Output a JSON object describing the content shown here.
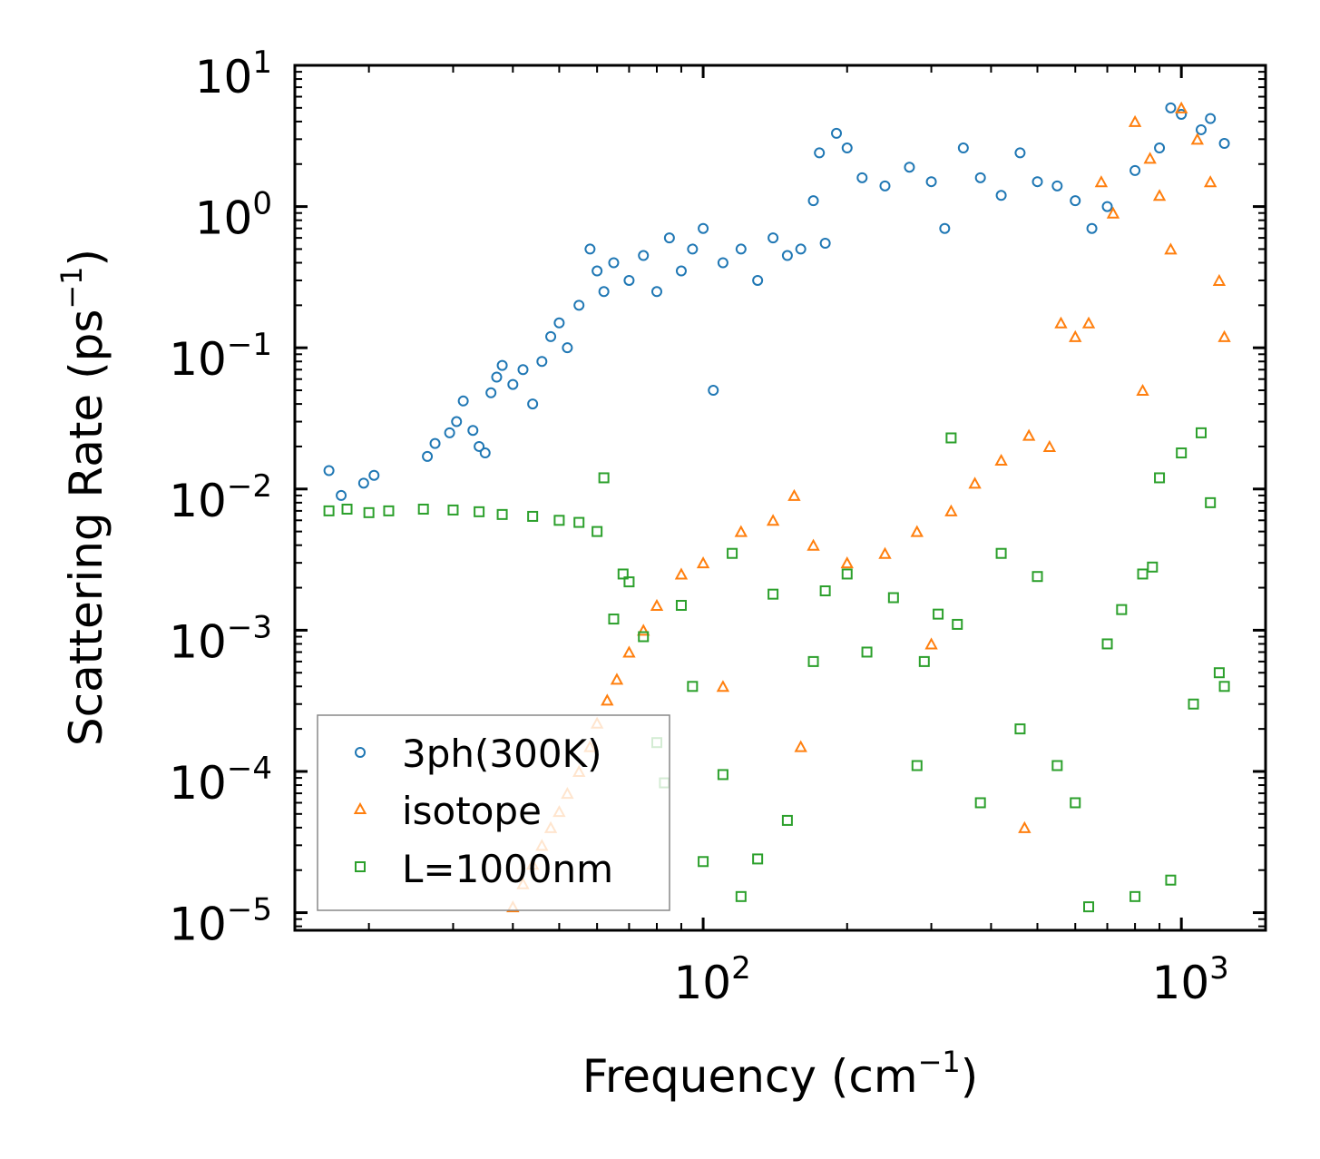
{
  "chart_data": {
    "type": "scatter",
    "title": "",
    "xlabel": "Frequency (cm⁻¹)",
    "ylabel": "Scattering Rate (ps⁻¹)",
    "xlabel_parts": {
      "base": "Frequency (cm",
      "sup": "−1",
      "end": ")"
    },
    "ylabel_parts": {
      "base": "Scattering Rate (ps",
      "sup": "−1",
      "end": ")"
    },
    "xscale": "log",
    "yscale": "log",
    "xlim": [
      14,
      1500
    ],
    "ylim": [
      7.5e-06,
      10
    ],
    "x_ticks": [
      {
        "value": 100,
        "base": "10",
        "exp": "2"
      },
      {
        "value": 1000,
        "base": "10",
        "exp": "3"
      }
    ],
    "y_ticks": [
      {
        "value": 10,
        "base": "10",
        "exp": "1"
      },
      {
        "value": 1,
        "base": "10",
        "exp": "0"
      },
      {
        "value": 0.1,
        "base": "10",
        "exp": "−1"
      },
      {
        "value": 0.01,
        "base": "10",
        "exp": "−2"
      },
      {
        "value": 0.001,
        "base": "10",
        "exp": "−3"
      },
      {
        "value": 0.0001,
        "base": "10",
        "exp": "−4"
      },
      {
        "value": 1e-05,
        "base": "10",
        "exp": "−5"
      }
    ],
    "grid": false,
    "legend_position": "lower-left",
    "series": [
      {
        "name": "3ph(300K)",
        "marker": "circle",
        "color": "#1f77b4",
        "points": [
          [
            16.5,
            0.0135
          ],
          [
            17.5,
            0.009
          ],
          [
            19.5,
            0.011
          ],
          [
            20.5,
            0.0125
          ],
          [
            26.5,
            0.017
          ],
          [
            27.5,
            0.021
          ],
          [
            29.5,
            0.025
          ],
          [
            30.5,
            0.03
          ],
          [
            31.5,
            0.042
          ],
          [
            33,
            0.026
          ],
          [
            34,
            0.02
          ],
          [
            35,
            0.018
          ],
          [
            36,
            0.048
          ],
          [
            37,
            0.062
          ],
          [
            38,
            0.075
          ],
          [
            40,
            0.055
          ],
          [
            42,
            0.07
          ],
          [
            44,
            0.04
          ],
          [
            46,
            0.08
          ],
          [
            48,
            0.12
          ],
          [
            50,
            0.15
          ],
          [
            52,
            0.1
          ],
          [
            55,
            0.2
          ],
          [
            58,
            0.5
          ],
          [
            60,
            0.35
          ],
          [
            62,
            0.25
          ],
          [
            65,
            0.4
          ],
          [
            70,
            0.3
          ],
          [
            75,
            0.45
          ],
          [
            80,
            0.25
          ],
          [
            85,
            0.6
          ],
          [
            90,
            0.35
          ],
          [
            95,
            0.5
          ],
          [
            100,
            0.7
          ],
          [
            105,
            0.05
          ],
          [
            110,
            0.4
          ],
          [
            120,
            0.5
          ],
          [
            130,
            0.3
          ],
          [
            140,
            0.6
          ],
          [
            150,
            0.45
          ],
          [
            160,
            0.5
          ],
          [
            170,
            1.1
          ],
          [
            175,
            2.4
          ],
          [
            180,
            0.55
          ],
          [
            190,
            3.3
          ],
          [
            200,
            2.6
          ],
          [
            215,
            1.6
          ],
          [
            240,
            1.4
          ],
          [
            270,
            1.9
          ],
          [
            300,
            1.5
          ],
          [
            320,
            0.7
          ],
          [
            350,
            2.6
          ],
          [
            380,
            1.6
          ],
          [
            420,
            1.2
          ],
          [
            460,
            2.4
          ],
          [
            500,
            1.5
          ],
          [
            550,
            1.4
          ],
          [
            600,
            1.1
          ],
          [
            650,
            0.7
          ],
          [
            700,
            1.0
          ],
          [
            800,
            1.8
          ],
          [
            900,
            2.6
          ],
          [
            950,
            5.0
          ],
          [
            1000,
            4.5
          ],
          [
            1100,
            3.5
          ],
          [
            1150,
            4.2
          ],
          [
            1230,
            2.8
          ]
        ]
      },
      {
        "name": "isotope",
        "marker": "triangle",
        "color": "#ff7f0e",
        "points": [
          [
            40,
            1.1e-05
          ],
          [
            42,
            1.6e-05
          ],
          [
            44,
            2.2e-05
          ],
          [
            46,
            3e-05
          ],
          [
            48,
            4e-05
          ],
          [
            50,
            5.2e-05
          ],
          [
            52,
            7e-05
          ],
          [
            55,
            0.0001
          ],
          [
            58,
            0.00015
          ],
          [
            60,
            0.00022
          ],
          [
            63,
            0.00032
          ],
          [
            66,
            0.00045
          ],
          [
            70,
            0.0007
          ],
          [
            75,
            0.001
          ],
          [
            80,
            0.0015
          ],
          [
            90,
            0.0025
          ],
          [
            100,
            0.003
          ],
          [
            120,
            0.005
          ],
          [
            140,
            0.006
          ],
          [
            155,
            0.009
          ],
          [
            170,
            0.004
          ],
          [
            200,
            0.003
          ],
          [
            240,
            0.0035
          ],
          [
            280,
            0.005
          ],
          [
            330,
            0.007
          ],
          [
            370,
            0.011
          ],
          [
            420,
            0.016
          ],
          [
            480,
            0.024
          ],
          [
            530,
            0.02
          ],
          [
            560,
            0.15
          ],
          [
            600,
            0.12
          ],
          [
            640,
            0.15
          ],
          [
            680,
            1.5
          ],
          [
            720,
            0.9
          ],
          [
            800,
            4.0
          ],
          [
            830,
            0.05
          ],
          [
            860,
            2.2
          ],
          [
            900,
            1.2
          ],
          [
            950,
            0.5
          ],
          [
            1000,
            5.0
          ],
          [
            1080,
            3.0
          ],
          [
            1150,
            1.5
          ],
          [
            1200,
            0.3
          ],
          [
            1230,
            0.12
          ],
          [
            470,
            4e-05
          ],
          [
            160,
            0.00015
          ],
          [
            110,
            0.0004
          ],
          [
            300,
            0.0008
          ]
        ]
      },
      {
        "name": "L=1000nm",
        "marker": "square",
        "color": "#2ca02c",
        "points": [
          [
            16.5,
            0.007
          ],
          [
            18,
            0.0072
          ],
          [
            20,
            0.0068
          ],
          [
            22,
            0.007
          ],
          [
            26,
            0.0072
          ],
          [
            30,
            0.0071
          ],
          [
            34,
            0.0069
          ],
          [
            38,
            0.0066
          ],
          [
            44,
            0.0064
          ],
          [
            50,
            0.006
          ],
          [
            55,
            0.0058
          ],
          [
            60,
            0.005
          ],
          [
            62,
            0.012
          ],
          [
            65,
            0.0012
          ],
          [
            70,
            0.0022
          ],
          [
            75,
            0.0009
          ],
          [
            80,
            0.00016
          ],
          [
            83,
            8.3e-05
          ],
          [
            90,
            0.0015
          ],
          [
            95,
            0.0004
          ],
          [
            100,
            2.3e-05
          ],
          [
            110,
            9.5e-05
          ],
          [
            120,
            1.3e-05
          ],
          [
            130,
            2.4e-05
          ],
          [
            140,
            0.0018
          ],
          [
            150,
            4.5e-05
          ],
          [
            170,
            0.0006
          ],
          [
            200,
            0.0025
          ],
          [
            220,
            0.0007
          ],
          [
            250,
            0.0017
          ],
          [
            280,
            0.00011
          ],
          [
            310,
            0.0013
          ],
          [
            340,
            0.0011
          ],
          [
            380,
            6e-05
          ],
          [
            420,
            0.0035
          ],
          [
            460,
            0.0002
          ],
          [
            500,
            0.0024
          ],
          [
            550,
            0.00011
          ],
          [
            600,
            6e-05
          ],
          [
            640,
            1.1e-05
          ],
          [
            700,
            0.0008
          ],
          [
            750,
            0.0014
          ],
          [
            800,
            1.3e-05
          ],
          [
            830,
            0.0025
          ],
          [
            870,
            0.0028
          ],
          [
            900,
            0.012
          ],
          [
            950,
            1.7e-05
          ],
          [
            1000,
            0.018
          ],
          [
            1060,
            0.0003
          ],
          [
            1100,
            0.025
          ],
          [
            1150,
            0.008
          ],
          [
            1200,
            0.0005
          ],
          [
            1230,
            0.0004
          ],
          [
            330,
            0.023
          ],
          [
            290,
            0.0006
          ],
          [
            180,
            0.0019
          ],
          [
            115,
            0.0035
          ],
          [
            68,
            0.0025
          ]
        ]
      }
    ]
  }
}
